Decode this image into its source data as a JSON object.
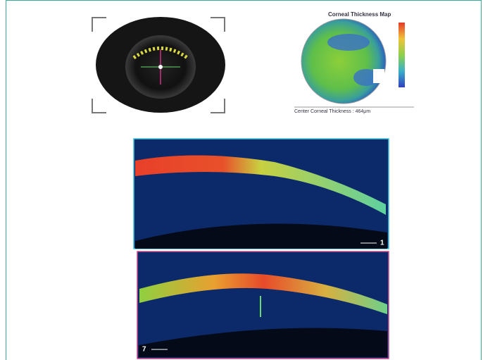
{
  "thickness_map": {
    "title": "Corneal Thickness Map",
    "center_thickness": "Center Corneal Thickness : 464μm"
  },
  "scans": [
    {
      "label": "1"
    },
    {
      "label": "7"
    }
  ]
}
